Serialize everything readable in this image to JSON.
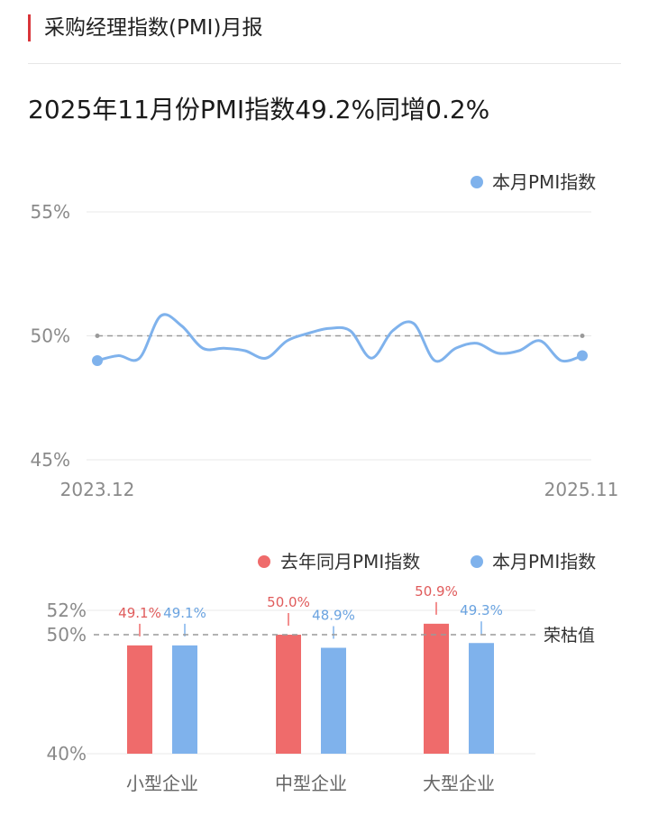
{
  "header": {
    "title": "采购经理指数(PMI)月报"
  },
  "headline": "2025年11月份PMI指数49.2%同增0.2%",
  "colors": {
    "accent": "#d9353a",
    "blue": "#7fb2ec",
    "red": "#ef6b6b",
    "grid": "#e8e8e8",
    "axisText": "#8a8a8a",
    "refLine": "#9a9a9a"
  },
  "chart_data": [
    {
      "type": "line",
      "legend": [
        "本月PMI指数"
      ],
      "legend_position": "top-right",
      "ylim": [
        45,
        55
      ],
      "yticks": [
        "55%",
        "50%",
        "45%"
      ],
      "x_labels": [
        "2023.12",
        "2025.11"
      ],
      "reference_line": 50,
      "x": [
        "2023.12",
        "2024.01",
        "2024.02",
        "2024.03",
        "2024.04",
        "2024.05",
        "2024.06",
        "2024.07",
        "2024.08",
        "2024.09",
        "2024.10",
        "2024.11",
        "2024.12",
        "2025.01",
        "2025.02",
        "2025.03",
        "2025.04",
        "2025.05",
        "2025.06",
        "2025.07",
        "2025.08",
        "2025.09",
        "2025.10",
        "2025.11"
      ],
      "values": [
        49.0,
        49.2,
        49.1,
        50.8,
        50.4,
        49.5,
        49.5,
        49.4,
        49.1,
        49.8,
        50.1,
        50.3,
        50.2,
        49.1,
        50.2,
        50.5,
        49.0,
        49.5,
        49.7,
        49.3,
        49.4,
        49.8,
        49.0,
        49.2
      ]
    },
    {
      "type": "bar",
      "legend_position": "top-right",
      "categories": [
        "小型企业",
        "中型企业",
        "大型企业"
      ],
      "series": [
        {
          "name": "去年同月PMI指数",
          "values": [
            49.1,
            50.0,
            50.9
          ],
          "labels": [
            "49.1%",
            "50.0%",
            "50.9%"
          ]
        },
        {
          "name": "本月PMI指数",
          "values": [
            49.1,
            48.9,
            49.3
          ],
          "labels": [
            "49.1%",
            "48.9%",
            "49.3%"
          ]
        }
      ],
      "yticks": [
        "52%",
        "50%",
        "40%"
      ],
      "ylim": [
        40,
        52
      ],
      "reference_line": 50,
      "reference_label": "荣枯值"
    }
  ]
}
